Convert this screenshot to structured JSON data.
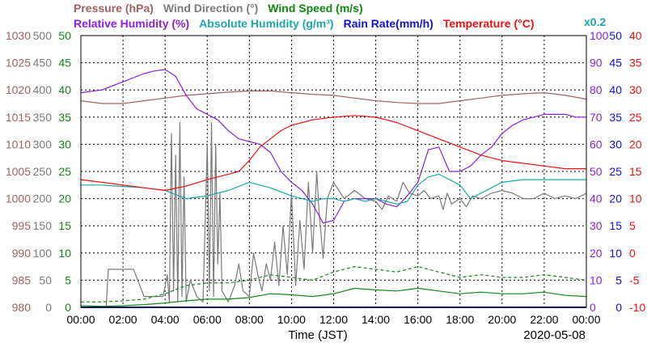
{
  "chart_data": {
    "type": "line",
    "title_row1": [
      {
        "key": "pressure",
        "text": "Pressure (hPa)",
        "color": "#a0625f"
      },
      {
        "key": "wind_dir",
        "text": "Wind Direction (°)",
        "color": "#7a7a7a"
      },
      {
        "key": "wind_speed",
        "text": "Wind Speed (m/s)",
        "color": "#118811"
      }
    ],
    "title_row2": [
      {
        "key": "rh",
        "text": "Relative Humidity (%)",
        "color": "#8b1fe0"
      },
      {
        "key": "ah",
        "text": "Absolute Humidity (g/m³)",
        "color": "#1aa8a8"
      },
      {
        "key": "rain",
        "text": "Rain Rate(mm/h)",
        "color": "#1010d8"
      },
      {
        "key": "temp",
        "text": "Temperature (°C)",
        "color": "#ee1111"
      }
    ],
    "ah_multiplier": "x0.2",
    "xlabel": "Time (JST)",
    "date": "2020-05-08",
    "x_ticks": [
      "00:00",
      "02:00",
      "04:00",
      "06:00",
      "08:00",
      "10:00",
      "12:00",
      "14:00",
      "16:00",
      "18:00",
      "20:00",
      "22:00",
      "00:00"
    ],
    "xlim_hours": [
      0,
      24
    ],
    "grid": true,
    "axes": {
      "pressure": {
        "color": "#a0625f",
        "range": [
          980,
          1030
        ],
        "ticks": [
          "1030",
          "1025",
          "1020",
          "1015",
          "1010",
          "1005",
          "1000",
          "995",
          "990",
          "985",
          "980"
        ]
      },
      "wind_dir": {
        "color": "#7a7a7a",
        "range": [
          0,
          500
        ],
        "ticks": [
          "500",
          "450",
          "400",
          "350",
          "300",
          "250",
          "200",
          "150",
          "100",
          "50",
          "0"
        ]
      },
      "wind_speed": {
        "color": "#118811",
        "range": [
          0,
          50
        ],
        "ticks": [
          "50",
          "45",
          "40",
          "35",
          "30",
          "25",
          "20",
          "15",
          "10",
          "5",
          "0"
        ]
      },
      "rh": {
        "color": "#8b1fe0",
        "range": [
          0,
          100
        ],
        "ticks": [
          "100",
          "90",
          "80",
          "70",
          "60",
          "50",
          "40",
          "30",
          "20",
          "10",
          "0"
        ]
      },
      "rain": {
        "color": "#1010d8",
        "range": [
          0,
          50
        ],
        "ticks": [
          "50",
          "45",
          "40",
          "35",
          "30",
          "25",
          "20",
          "15",
          "10",
          "5",
          "0"
        ]
      },
      "temp": {
        "color": "#ee1111",
        "range": [
          -10,
          40
        ],
        "ticks": [
          "40",
          "35",
          "30",
          "25",
          "20",
          "15",
          "10",
          "5",
          "0",
          "-5",
          "-10"
        ]
      }
    },
    "series": [
      {
        "key": "pressure",
        "axis": "pressure",
        "color": "#a0625f",
        "x": [
          0,
          1,
          2,
          3,
          4,
          5,
          6,
          7,
          8,
          9,
          10,
          11,
          12,
          13,
          14,
          15,
          16,
          17,
          18,
          19,
          20,
          21,
          22,
          23,
          24
        ],
        "y": [
          1018,
          1017.5,
          1017.5,
          1018,
          1018.5,
          1019,
          1019.3,
          1019.6,
          1019.8,
          1019.8,
          1019.5,
          1019.2,
          1019,
          1018.5,
          1018,
          1017.7,
          1017.5,
          1017.5,
          1018,
          1018.5,
          1019,
          1019.3,
          1019.5,
          1019,
          1018.3
        ]
      },
      {
        "key": "wind_dir",
        "axis": "wind_dir",
        "color": "#7a7a7a",
        "x": [
          0,
          1.2,
          1.3,
          2,
          2.3,
          2.5,
          3,
          3.5,
          3.9,
          4.1,
          4.2,
          4.3,
          4.4,
          4.5,
          4.6,
          4.7,
          4.8,
          4.9,
          5,
          5.2,
          5.5,
          5.8,
          6,
          6.1,
          6.2,
          6.3,
          6.4,
          6.5,
          6.6,
          6.7,
          7,
          7.3,
          7.5,
          7.7,
          8,
          8.2,
          8.4,
          8.6,
          8.8,
          9,
          9.2,
          9.4,
          9.6,
          9.8,
          10,
          10.2,
          10.4,
          10.6,
          10.8,
          11,
          11.2,
          11.3,
          11.5,
          11.7,
          12,
          12.5,
          13,
          13.5,
          14,
          14.3,
          14.6,
          15,
          15.3,
          15.6,
          16,
          16.3,
          16.6,
          17,
          17.2,
          17.4,
          17.6,
          18,
          18.3,
          18.6,
          19,
          19.5,
          20,
          20.5,
          21,
          21.5,
          22,
          22.5,
          23,
          23.5,
          24
        ],
        "y": [
          0,
          0,
          70,
          70,
          70,
          70,
          20,
          20,
          20,
          60,
          10,
          320,
          30,
          280,
          10,
          340,
          20,
          240,
          10,
          50,
          20,
          10,
          300,
          30,
          340,
          20,
          300,
          80,
          210,
          30,
          10,
          40,
          80,
          30,
          20,
          100,
          60,
          30,
          80,
          50,
          120,
          40,
          150,
          60,
          210,
          40,
          160,
          70,
          230,
          100,
          250,
          180,
          90,
          200,
          230,
          200,
          215,
          200,
          195,
          180,
          205,
          195,
          230,
          210,
          205,
          215,
          200,
          205,
          180,
          210,
          190,
          200,
          185,
          205,
          200,
          210,
          215,
          210,
          200,
          200,
          210,
          200,
          205,
          200,
          210
        ]
      },
      {
        "key": "wind_speed",
        "axis": "wind_speed",
        "color": "#118811",
        "x": [
          0,
          1,
          2,
          3,
          4,
          5,
          6,
          7,
          8,
          9,
          10,
          11,
          12,
          13,
          14,
          15,
          16,
          17,
          18,
          19,
          20,
          21,
          22,
          23,
          24
        ],
        "y": [
          0.3,
          0.2,
          0.3,
          0.5,
          0.8,
          1.2,
          1.5,
          1.5,
          1.8,
          2.5,
          2.3,
          2,
          2.5,
          3.5,
          3.2,
          3,
          3.5,
          3,
          2.5,
          2.8,
          2.5,
          2.5,
          2.8,
          2.2,
          2
        ]
      },
      {
        "key": "wind_gust",
        "axis": "wind_speed",
        "color": "#118811",
        "x": [
          0,
          1,
          2,
          3,
          4,
          5,
          6,
          7,
          8,
          9,
          10,
          11,
          12,
          13,
          14,
          15,
          16,
          17,
          18,
          19,
          20,
          21,
          22,
          23,
          24
        ],
        "y": [
          1,
          1,
          1.2,
          1.5,
          2.5,
          4,
          4.5,
          4.5,
          5,
          6,
          5.5,
          5,
          6.5,
          7.5,
          7,
          6.5,
          7.5,
          6.5,
          5.5,
          6,
          5.5,
          5.5,
          6,
          5.5,
          5
        ]
      },
      {
        "key": "rh",
        "axis": "rh",
        "color": "#8b1fe0",
        "x": [
          0,
          1,
          2,
          3,
          3.5,
          4,
          4.5,
          5,
          5.5,
          6,
          6.5,
          7,
          7.5,
          8,
          8.5,
          9,
          9.5,
          10,
          10.5,
          11,
          11.5,
          12,
          12.5,
          13,
          13.5,
          14,
          14.5,
          15,
          15.5,
          16,
          16.5,
          17,
          17.5,
          18,
          18.5,
          19,
          19.5,
          20,
          20.5,
          21,
          21.5,
          22,
          22.5,
          23,
          23.5,
          24
        ],
        "y": [
          79,
          80,
          83,
          86,
          87,
          87.5,
          85,
          78,
          73,
          71,
          69,
          65,
          62,
          61,
          60,
          57,
          50,
          46,
          43,
          38,
          31,
          32,
          39,
          40,
          40,
          40,
          38,
          37,
          41,
          46,
          58,
          59,
          50,
          50,
          52,
          56,
          59,
          64,
          67,
          69,
          70,
          71,
          71,
          71,
          70,
          70
        ]
      },
      {
        "key": "ah",
        "axis": "rh",
        "color": "#1aa8a8",
        "x": [
          0,
          1,
          2,
          3,
          4,
          5,
          6,
          7,
          8,
          9,
          10,
          10.5,
          11,
          11.5,
          12,
          12.5,
          13,
          13.5,
          14,
          14.5,
          15,
          15.5,
          16,
          16.5,
          17,
          17.5,
          18,
          18.5,
          19,
          19.5,
          20,
          21,
          22,
          23,
          24
        ],
        "y": [
          45,
          45,
          44.5,
          44,
          43,
          40,
          41,
          43,
          46,
          44,
          41,
          40,
          39,
          40,
          40,
          39,
          40,
          39,
          40,
          39,
          38,
          39,
          45,
          48,
          49,
          47,
          45,
          40,
          42,
          44,
          46,
          47,
          47,
          47,
          47
        ]
      },
      {
        "key": "rain",
        "axis": "rain",
        "color": "#1010d8",
        "x": [
          0,
          24
        ],
        "y": [
          0,
          0
        ]
      },
      {
        "key": "temp",
        "axis": "temp",
        "color": "#ee1111",
        "x": [
          0,
          1,
          2,
          3,
          4,
          5,
          6,
          7,
          7.5,
          8,
          8.5,
          9,
          9.5,
          10,
          11,
          12,
          13,
          14,
          15,
          16,
          17,
          18,
          19,
          20,
          21,
          22,
          23,
          24
        ],
        "y": [
          13.5,
          13,
          12.5,
          12,
          11.5,
          12.3,
          13.5,
          14.5,
          15,
          17,
          19.5,
          21,
          22.5,
          23.5,
          24.5,
          25,
          25.3,
          25,
          24,
          22.5,
          21,
          19.5,
          18,
          17,
          16.5,
          16,
          15.5,
          15.5
        ]
      }
    ]
  }
}
